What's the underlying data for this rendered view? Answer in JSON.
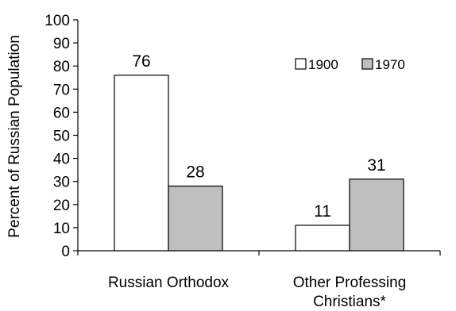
{
  "chart_data": {
    "type": "bar",
    "ylabel": "Percent of Russian Population",
    "xlabel": "",
    "ylim": [
      0,
      100
    ],
    "yticks": [
      0,
      10,
      20,
      30,
      40,
      50,
      60,
      70,
      80,
      90,
      100
    ],
    "categories": [
      "Russian Orthodox",
      "Other Professing Christians*"
    ],
    "category_lines": [
      [
        "Russian Orthodox"
      ],
      [
        "Other Professing",
        "Christians*"
      ]
    ],
    "series": [
      {
        "name": "1900",
        "values": [
          76,
          11
        ],
        "color": "#ffffff"
      },
      {
        "name": "1970",
        "values": [
          28,
          31
        ],
        "color": "#bfbfbf"
      }
    ],
    "data_labels": [
      [
        "76",
        "11"
      ],
      [
        "28",
        "31"
      ]
    ],
    "legend_position": "top-right",
    "grid": false
  }
}
